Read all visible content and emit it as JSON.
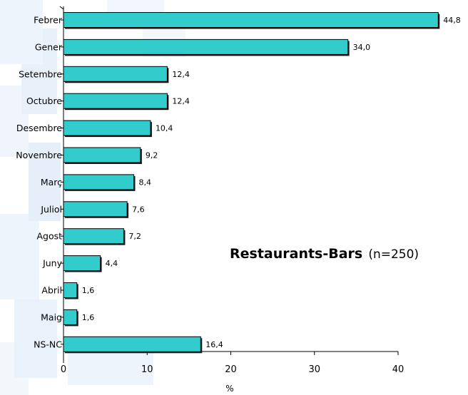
{
  "chart_data": {
    "type": "bar",
    "orientation": "horizontal",
    "title": "Restaurants-Bars",
    "subtitle": "(n=250)",
    "xlabel": "%",
    "ylabel": "",
    "xlim": [
      0,
      40
    ],
    "x_ticks": [
      0,
      10,
      20,
      30,
      40
    ],
    "grid": false,
    "categories": [
      "Febrer",
      "Gener",
      "Setembre",
      "Octubre",
      "Desembre",
      "Novembre",
      "Març",
      "Juliol",
      "Agost",
      "Juny",
      "Abril",
      "Maig",
      "NS-NC"
    ],
    "values": [
      44.8,
      34.0,
      12.4,
      12.4,
      10.4,
      9.2,
      8.4,
      7.6,
      7.2,
      4.4,
      1.6,
      1.6,
      16.4
    ],
    "value_labels": [
      "44,8",
      "34,0",
      "12,4",
      "12,4",
      "10,4",
      "9,2",
      "8,4",
      "7,6",
      "7,2",
      "4,4",
      "1,6",
      "1,6",
      "16,4"
    ],
    "colors": {
      "bar_fill": "#33cccc",
      "bar_edge": "#000000",
      "bar_shadow": "#1a1a1a"
    }
  }
}
